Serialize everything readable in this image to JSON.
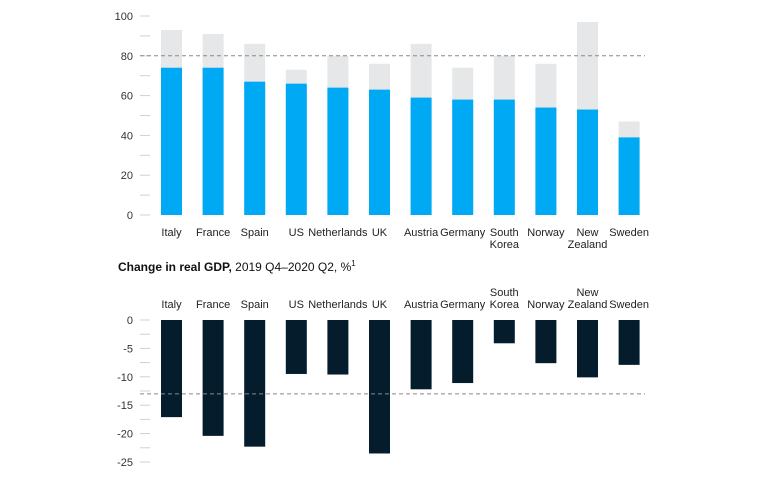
{
  "chart_data": [
    {
      "type": "bar",
      "categories": [
        "Italy",
        "France",
        "Spain",
        "US",
        "Netherlands",
        "UK",
        "Austria",
        "Germany",
        "South Korea",
        "Norway",
        "New Zealand",
        "Sweden"
      ],
      "series": [
        {
          "values": [
            74,
            74,
            67,
            66,
            64,
            63,
            59,
            58,
            58,
            54,
            53,
            39
          ]
        },
        {
          "values": [
            93,
            91,
            86,
            73,
            80,
            76,
            86,
            74,
            80,
            76,
            97,
            47
          ]
        }
      ],
      "ylim": [
        0,
        100
      ],
      "yticks": [
        0,
        20,
        40,
        60,
        80,
        100
      ],
      "reference_line": 80,
      "colors": {
        "primary": "#00a9f4",
        "secondary": "#e6e7e8",
        "reference": "#888888"
      }
    },
    {
      "type": "bar",
      "title_bold": "Change in real GDP,",
      "title_rest": " 2019 Q4–2020 Q2, %",
      "title_sup": "1",
      "categories": [
        "Italy",
        "France",
        "Spain",
        "US",
        "Netherlands",
        "UK",
        "Austria",
        "Germany",
        "South Korea",
        "Norway",
        "New Zealand",
        "Sweden"
      ],
      "series": [
        {
          "values": [
            -17.1,
            -20.4,
            -22.3,
            -9.5,
            -9.6,
            -23.5,
            -12.2,
            -11.1,
            -4.1,
            -7.6,
            -10.1,
            -7.9
          ]
        }
      ],
      "ylim": [
        -25,
        0
      ],
      "yticks": [
        0,
        -5,
        -10,
        -15,
        -20,
        -25
      ],
      "reference_line": -13,
      "colors": {
        "primary": "#051c2c",
        "reference": "#888888"
      }
    }
  ]
}
